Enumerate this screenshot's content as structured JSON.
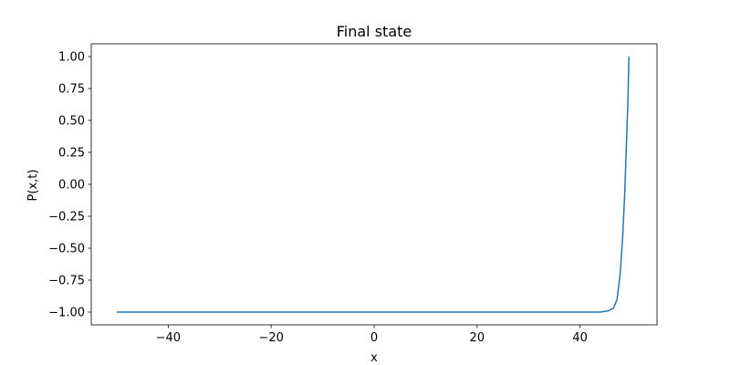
{
  "chart_data": {
    "type": "line",
    "title": "Final state",
    "xlabel": "x",
    "ylabel": "P(x,t)",
    "xlim": [
      -54.95,
      54.95
    ],
    "ylim": [
      -1.1,
      1.1
    ],
    "xticks": [
      -40,
      -20,
      0,
      20,
      40
    ],
    "xtick_labels": [
      "−40",
      "−20",
      "0",
      "20",
      "40"
    ],
    "yticks": [
      1.0,
      0.75,
      0.5,
      0.25,
      0.0,
      -0.25,
      -0.5,
      -0.75,
      -1.0
    ],
    "ytick_labels": [
      "1.00",
      "0.75",
      "0.50",
      "0.25",
      "0.00",
      "−0.25",
      "−0.50",
      "−0.75",
      "−1.00"
    ],
    "grid": false,
    "line_color": "#1f77b4",
    "series": [
      {
        "x": [
          -50,
          -30,
          -10,
          10,
          30,
          44,
          45.5,
          46.5,
          47.2,
          47.8,
          48.3,
          48.7,
          49.0,
          49.3,
          49.5
        ],
        "y": [
          -1.0,
          -1.0,
          -1.0,
          -1.0,
          -1.0,
          -1.0,
          -0.99,
          -0.97,
          -0.9,
          -0.7,
          -0.4,
          -0.05,
          0.3,
          0.65,
          1.0
        ]
      }
    ]
  }
}
